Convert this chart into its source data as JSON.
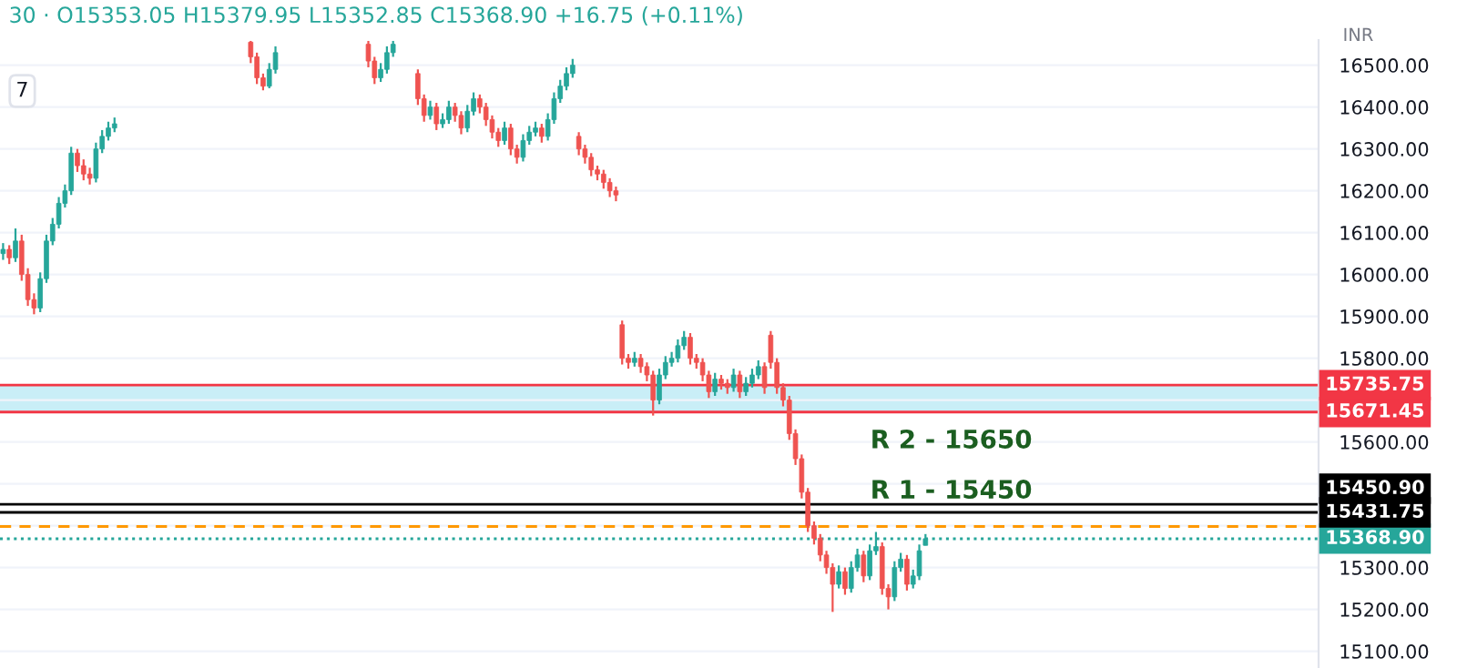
{
  "chart_data": {
    "type": "candlestick",
    "title": "30 · O15353.05 H15379.95 L15352.85 C15368.90 +16.75 (+0.11%)",
    "ylabel": "INR",
    "annotations": [
      "7",
      "R 2 - 15650",
      "R 1 - 15450"
    ],
    "grid": "y",
    "ylim": [
      15060,
      16560
    ],
    "yticks": [
      {
        "value": 15100,
        "label": "15100.00"
      },
      {
        "value": 15200,
        "label": "15200.00"
      },
      {
        "value": 15300,
        "label": "15300.00"
      },
      {
        "value": 15400,
        "label": null
      },
      {
        "value": 15500,
        "label": null
      },
      {
        "value": 15600,
        "label": "15600.00"
      },
      {
        "value": 15700,
        "label": null
      },
      {
        "value": 15800,
        "label": "15800.00"
      },
      {
        "value": 15900,
        "label": "15900.00"
      },
      {
        "value": 16000,
        "label": "16000.00"
      },
      {
        "value": 16100,
        "label": "16100.00"
      },
      {
        "value": 16200,
        "label": "16200.00"
      },
      {
        "value": 16300,
        "label": "16300.00"
      },
      {
        "value": 16400,
        "label": "16400.00"
      },
      {
        "value": 16500,
        "label": "16500.00"
      }
    ],
    "bands": [
      {
        "axis": "y",
        "from": 15671.45,
        "to": 15735.75,
        "label": null,
        "color": "#c9eef7"
      }
    ],
    "ref_lines": [
      {
        "axis": "y",
        "value": 15735.75,
        "label": "15735.75",
        "color": "#f23645"
      },
      {
        "axis": "y",
        "value": 15671.45,
        "label": "15671.45",
        "color": "#f23645"
      },
      {
        "axis": "y",
        "value": 15450.9,
        "label": "15450.90",
        "color": "#000000"
      },
      {
        "axis": "y",
        "value": 15431.75,
        "label": "15431.75",
        "color": "#000000"
      },
      {
        "axis": "y",
        "value": 15398,
        "label": null,
        "color": "#ff9800",
        "line_style": "dashed"
      },
      {
        "axis": "y",
        "value": 15368.9,
        "label": "15368.90",
        "color": "#26a69a",
        "line_style": "dotted"
      }
    ],
    "colors": [
      "#26a69a",
      "#ef5350",
      "#26a69a",
      "#ef5350",
      "#ef5350",
      "#ef5350",
      "#26a69a",
      "#26a69a",
      "#26a69a",
      "#26a69a",
      "#26a69a",
      "#26a69a",
      "#ef5350",
      "#ef5350",
      "#ef5350",
      "#26a69a",
      "#26a69a",
      "#26a69a",
      "#26a69a",
      null,
      null,
      null,
      null,
      null,
      null,
      null,
      null,
      null,
      null,
      null,
      null,
      null,
      null,
      null,
      null,
      null,
      null,
      null,
      null,
      null,
      "#ef5350",
      "#ef5350",
      "#ef5350",
      "#26a69a",
      "#26a69a",
      null,
      null,
      null,
      null,
      null,
      null,
      null,
      null,
      null,
      null,
      null,
      null,
      null,
      null,
      "#ef5350",
      "#ef5350",
      "#26a69a",
      "#26a69a",
      "#26a69a",
      null,
      null,
      null,
      "#ef5350",
      "#ef5350",
      "#26a69a",
      "#ef5350",
      "#26a69a",
      "#26a69a",
      "#ef5350",
      "#ef5350",
      "#26a69a",
      "#26a69a",
      "#ef5350",
      "#ef5350",
      "#ef5350",
      "#ef5350",
      "#26a69a",
      "#ef5350",
      "#ef5350",
      "#26a69a",
      "#26a69a",
      "#26a69a",
      "#ef5350",
      "#26a69a",
      "#26a69a",
      "#26a69a",
      "#26a69a",
      "#26a69a",
      "#ef5350",
      "#ef5350",
      "#ef5350",
      "#ef5350",
      "#ef5350",
      "#ef5350",
      "#ef5350",
      "#ef5350",
      "#ef5350",
      "#26a69a",
      "#ef5350",
      "#ef5350",
      "#ef5350",
      "#26a69a",
      "#26a69a",
      "#26a69a",
      "#26a69a",
      "#26a69a",
      "#ef5350",
      "#ef5350",
      "#ef5350",
      "#ef5350",
      "#26a69a",
      "#ef5350",
      "#ef5350",
      "#26a69a",
      "#ef5350",
      "#26a69a",
      "#26a69a",
      "#26a69a",
      "#ef5350",
      "#ef5350",
      "#ef5350",
      "#ef5350",
      "#ef5350",
      "#ef5350",
      "#ef5350",
      "#ef5350",
      "#ef5350",
      "#ef5350",
      "#ef5350",
      "#ef5350",
      "#26a69a",
      "#ef5350",
      "#26a69a",
      "#26a69a",
      "#ef5350",
      "#26a69a",
      "#26a69a",
      "#ef5350",
      "#ef5350",
      "#26a69a",
      "#26a69a",
      "#ef5350",
      "#26a69a",
      "#26a69a",
      "#26a69a",
      null,
      null,
      null,
      null,
      null,
      null,
      null,
      null,
      null,
      null,
      null,
      null,
      null,
      null,
      null,
      null,
      null,
      null,
      null,
      null,
      null,
      null,
      null,
      null,
      null,
      null,
      null,
      null,
      null,
      null,
      null,
      null,
      null,
      null,
      null,
      null,
      null,
      null,
      null,
      null,
      null,
      null,
      null,
      null,
      null,
      null,
      null,
      null,
      null,
      null,
      null,
      null,
      null,
      null,
      null,
      null,
      null,
      null,
      null,
      null,
      null,
      null,
      null
    ],
    "categories": [
      null,
      null,
      null,
      null,
      null,
      null,
      null,
      null,
      null,
      null,
      null,
      null,
      null,
      null,
      null,
      null,
      null,
      null,
      null,
      null,
      null,
      null,
      null,
      null,
      null,
      null,
      null,
      null,
      null,
      null,
      null,
      null,
      null,
      null,
      null,
      null,
      null,
      null,
      null,
      null,
      null,
      null,
      null,
      null,
      null,
      null,
      null,
      null,
      null,
      null,
      null,
      null,
      null,
      null,
      null,
      null,
      null,
      null,
      null,
      null,
      null,
      null,
      null,
      null,
      null,
      null,
      null,
      null,
      null,
      null,
      null,
      null,
      null,
      null,
      null,
      null,
      null,
      null,
      null,
      null,
      null,
      null,
      null,
      null,
      null,
      null,
      null,
      null,
      null,
      null,
      null,
      null,
      null,
      null,
      null,
      null,
      null,
      null,
      null,
      null,
      null,
      null,
      null,
      null,
      null,
      null,
      null,
      null,
      null,
      null,
      null,
      null,
      null,
      null,
      null,
      null,
      null,
      null,
      null,
      null,
      null,
      null,
      null,
      null,
      null,
      null,
      null,
      null,
      null,
      null,
      null,
      null,
      null,
      null,
      null,
      null,
      null,
      null,
      null,
      null,
      null,
      null,
      null,
      null,
      null,
      null,
      null,
      null,
      null,
      null,
      null,
      null,
      null,
      null,
      null,
      null,
      null,
      null,
      null,
      null,
      null,
      null,
      null,
      null,
      null,
      null,
      null,
      null,
      null,
      null,
      null,
      null,
      null,
      null,
      null,
      null,
      null,
      null,
      null,
      null,
      null,
      null,
      null,
      null,
      null,
      null,
      null,
      null,
      null,
      null,
      null,
      null,
      null,
      null,
      null,
      null,
      null,
      null,
      null,
      null,
      null,
      null,
      null,
      null,
      null,
      null,
      null,
      null,
      null,
      null,
      null,
      null,
      null
    ],
    "ohlc": [
      [
        16050,
        16075,
        16035,
        16060
      ],
      [
        16060,
        16070,
        16025,
        16040
      ],
      [
        16040,
        16110,
        16030,
        16080
      ],
      [
        16080,
        16095,
        15985,
        16000
      ],
      [
        16000,
        16015,
        15925,
        15940
      ],
      [
        15940,
        15955,
        15905,
        15920
      ],
      [
        15920,
        16005,
        15910,
        15990
      ],
      [
        15990,
        16095,
        15980,
        16080
      ],
      [
        16080,
        16135,
        16070,
        16120
      ],
      [
        16120,
        16185,
        16110,
        16170
      ],
      [
        16170,
        16215,
        16160,
        16200
      ],
      [
        16200,
        16305,
        16190,
        16290
      ],
      [
        16290,
        16300,
        16245,
        16260
      ],
      [
        16260,
        16275,
        16225,
        16240
      ],
      [
        16240,
        16255,
        16215,
        16230
      ],
      [
        16230,
        16315,
        16220,
        16300
      ],
      [
        16300,
        16345,
        16290,
        16330
      ],
      [
        16330,
        16365,
        16320,
        16350
      ],
      [
        16350,
        16375,
        16340,
        16360
      ],
      null,
      null,
      null,
      null,
      null,
      null,
      null,
      null,
      null,
      null,
      null,
      null,
      null,
      null,
      null,
      null,
      null,
      null,
      null,
      null,
      null,
      [
        16555,
        16558,
        16505,
        16520
      ],
      [
        16520,
        16530,
        16455,
        16470
      ],
      [
        16470,
        16480,
        16440,
        16450
      ],
      [
        16450,
        16505,
        16445,
        16490
      ],
      [
        16490,
        16545,
        16480,
        16530
      ],
      null,
      null,
      null,
      null,
      null,
      null,
      null,
      null,
      null,
      null,
      null,
      null,
      null,
      null,
      [
        16550,
        16558,
        16495,
        16510
      ],
      [
        16510,
        16520,
        16455,
        16470
      ],
      [
        16470,
        16505,
        16460,
        16490
      ],
      [
        16490,
        16545,
        16480,
        16530
      ],
      [
        16530,
        16558,
        16520,
        16550
      ],
      null,
      null,
      null,
      [
        16480,
        16490,
        16405,
        16420
      ],
      [
        16420,
        16430,
        16365,
        16380
      ],
      [
        16380,
        16415,
        16370,
        16400
      ],
      [
        16400,
        16410,
        16345,
        16360
      ],
      [
        16360,
        16385,
        16350,
        16370
      ],
      [
        16370,
        16415,
        16360,
        16400
      ],
      [
        16400,
        16410,
        16365,
        16380
      ],
      [
        16380,
        16390,
        16335,
        16350
      ],
      [
        16350,
        16405,
        16340,
        16390
      ],
      [
        16390,
        16435,
        16380,
        16420
      ],
      [
        16420,
        16430,
        16385,
        16400
      ],
      [
        16400,
        16410,
        16355,
        16370
      ],
      [
        16370,
        16380,
        16325,
        16340
      ],
      [
        16340,
        16350,
        16305,
        16320
      ],
      [
        16320,
        16365,
        16310,
        16350
      ],
      [
        16350,
        16360,
        16285,
        16300
      ],
      [
        16300,
        16310,
        16265,
        16280
      ],
      [
        16280,
        16335,
        16270,
        16320
      ],
      [
        16320,
        16355,
        16310,
        16340
      ],
      [
        16340,
        16365,
        16330,
        16350
      ],
      [
        16350,
        16360,
        16315,
        16330
      ],
      [
        16330,
        16385,
        16320,
        16370
      ],
      [
        16370,
        16435,
        16360,
        16420
      ],
      [
        16420,
        16465,
        16410,
        16450
      ],
      [
        16450,
        16495,
        16440,
        16480
      ],
      [
        16480,
        16515,
        16470,
        16500
      ],
      [
        16330,
        16340,
        16285,
        16300
      ],
      [
        16300,
        16310,
        16265,
        16280
      ],
      [
        16280,
        16290,
        16235,
        16250
      ],
      [
        16250,
        16260,
        16225,
        16240
      ],
      [
        16240,
        16250,
        16205,
        16220
      ],
      [
        16220,
        16230,
        16185,
        16200
      ],
      [
        16200,
        16210,
        16175,
        16190
      ],
      [
        15880,
        15890,
        15785,
        15800
      ],
      [
        15800,
        15810,
        15775,
        15790
      ],
      [
        15790,
        15815,
        15780,
        15800
      ],
      [
        15800,
        15810,
        15765,
        15780
      ],
      [
        15780,
        15790,
        15745,
        15760
      ],
      [
        15760,
        15770,
        15663,
        15700
      ],
      [
        15700,
        15775,
        15690,
        15760
      ],
      [
        15760,
        15805,
        15750,
        15790
      ],
      [
        15790,
        15815,
        15780,
        15800
      ],
      [
        15800,
        15845,
        15790,
        15830
      ],
      [
        15830,
        15865,
        15820,
        15850
      ],
      [
        15850,
        15860,
        15785,
        15800
      ],
      [
        15800,
        15810,
        15775,
        15790
      ],
      [
        15790,
        15800,
        15745,
        15760
      ],
      [
        15760,
        15770,
        15705,
        15720
      ],
      [
        15720,
        15765,
        15710,
        15750
      ],
      [
        15750,
        15760,
        15725,
        15740
      ],
      [
        15740,
        15750,
        15715,
        15730
      ],
      [
        15730,
        15775,
        15720,
        15760
      ],
      [
        15760,
        15770,
        15705,
        15720
      ],
      [
        15720,
        15755,
        15710,
        15740
      ],
      [
        15740,
        15775,
        15730,
        15760
      ],
      [
        15760,
        15795,
        15750,
        15780
      ],
      [
        15780,
        15790,
        15715,
        15730
      ],
      [
        15855,
        15865,
        15775,
        15790
      ],
      [
        15790,
        15800,
        15715,
        15730
      ],
      [
        15730,
        15740,
        15685,
        15700
      ],
      [
        15700,
        15710,
        15605,
        15620
      ],
      [
        15620,
        15630,
        15545,
        15560
      ],
      [
        15560,
        15570,
        15465,
        15480
      ],
      [
        15480,
        15490,
        15385,
        15400
      ],
      [
        15400,
        15410,
        15355,
        15370
      ],
      [
        15370,
        15380,
        15315,
        15330
      ],
      [
        15330,
        15340,
        15285,
        15300
      ],
      [
        15300,
        15310,
        15194,
        15260
      ],
      [
        15260,
        15305,
        15250,
        15290
      ],
      [
        15290,
        15300,
        15235,
        15250
      ],
      [
        15250,
        15315,
        15240,
        15300
      ],
      [
        15300,
        15345,
        15290,
        15330
      ],
      [
        15330,
        15340,
        15265,
        15280
      ],
      [
        15280,
        15355,
        15270,
        15340
      ],
      [
        15340,
        15385,
        15330,
        15350
      ],
      [
        15350,
        15360,
        15235,
        15250
      ],
      [
        15250,
        15260,
        15200,
        15230
      ],
      [
        15230,
        15315,
        15220,
        15300
      ],
      [
        15300,
        15335,
        15290,
        15320
      ],
      [
        15320,
        15330,
        15245,
        15260
      ],
      [
        15260,
        15295,
        15250,
        15280
      ],
      [
        15280,
        15355,
        15270,
        15340
      ],
      [
        15353.05,
        15379.95,
        15352.85,
        15368.9
      ],
      null,
      null,
      null,
      null,
      null,
      null,
      null,
      null,
      null,
      null,
      null,
      null,
      null,
      null,
      null,
      null,
      null,
      null,
      null,
      null,
      null,
      null,
      null,
      null,
      null,
      null,
      null,
      null,
      null,
      null,
      null,
      null,
      null,
      null,
      null,
      null,
      null,
      null,
      null,
      null,
      null,
      null,
      null,
      null,
      null,
      null,
      null,
      null,
      null,
      null,
      null,
      null,
      null,
      null,
      null,
      null,
      null,
      null,
      null,
      null,
      null,
      null,
      null
    ]
  }
}
